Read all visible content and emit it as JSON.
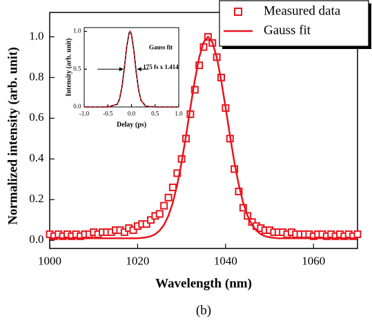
{
  "chart_data": [
    {
      "type": "line",
      "xlabel": "Wavelength (nm)",
      "ylabel": "Normalized intensity (arb. unit)",
      "x": [
        1000,
        1001,
        1002,
        1003,
        1004,
        1005,
        1006,
        1007,
        1008,
        1009,
        1010,
        1011,
        1012,
        1013,
        1014,
        1015,
        1016,
        1017,
        1018,
        1019,
        1020,
        1021,
        1022,
        1023,
        1024,
        1025,
        1026,
        1027,
        1028,
        1029,
        1030,
        1031,
        1032,
        1033,
        1034,
        1035,
        1036,
        1037,
        1038,
        1039,
        1040,
        1041,
        1042,
        1043,
        1044,
        1045,
        1046,
        1047,
        1048,
        1049,
        1050,
        1051,
        1052,
        1053,
        1054,
        1055,
        1056,
        1057,
        1058,
        1059,
        1060,
        1061,
        1062,
        1063,
        1064,
        1065,
        1066,
        1067,
        1068,
        1069,
        1070
      ],
      "series": [
        {
          "name": "Measured data",
          "type": "scatter",
          "color": "#e8141c",
          "values": [
            0.03,
            0.02,
            0.03,
            0.02,
            0.03,
            0.02,
            0.03,
            0.02,
            0.03,
            0.03,
            0.04,
            0.03,
            0.04,
            0.04,
            0.04,
            0.05,
            0.05,
            0.04,
            0.06,
            0.05,
            0.07,
            0.08,
            0.08,
            0.1,
            0.12,
            0.13,
            0.17,
            0.21,
            0.26,
            0.33,
            0.4,
            0.5,
            0.62,
            0.74,
            0.86,
            0.95,
            1.0,
            0.97,
            0.9,
            0.8,
            0.65,
            0.5,
            0.35,
            0.24,
            0.16,
            0.12,
            0.09,
            0.07,
            0.06,
            0.05,
            0.05,
            0.04,
            0.04,
            0.04,
            0.03,
            0.04,
            0.03,
            0.03,
            0.03,
            0.03,
            0.02,
            0.03,
            0.03,
            0.02,
            0.03,
            0.02,
            0.03,
            0.02,
            0.03,
            0.02,
            0.03
          ]
        },
        {
          "name": "Gauss fit",
          "type": "line",
          "color": "#e8141c",
          "values": [
            0.01,
            0.01,
            0.01,
            0.01,
            0.01,
            0.01,
            0.01,
            0.01,
            0.01,
            0.01,
            0.01,
            0.01,
            0.01,
            0.01,
            0.01,
            0.01,
            0.01,
            0.01,
            0.01,
            0.01,
            0.01,
            0.012,
            0.015,
            0.02,
            0.03,
            0.048,
            0.076,
            0.121,
            0.185,
            0.273,
            0.384,
            0.514,
            0.652,
            0.786,
            0.899,
            0.973,
            1.0,
            0.973,
            0.899,
            0.786,
            0.652,
            0.514,
            0.384,
            0.273,
            0.185,
            0.121,
            0.076,
            0.048,
            0.03,
            0.02,
            0.015,
            0.012,
            0.01,
            0.01,
            0.01,
            0.01,
            0.01,
            0.01,
            0.01,
            0.01,
            0.01,
            0.01,
            0.01,
            0.01,
            0.01,
            0.01,
            0.01,
            0.01,
            0.01,
            0.01,
            0.01
          ]
        }
      ],
      "xlim": [
        1000,
        1070
      ],
      "xticks": [
        1000,
        1020,
        1040,
        1060
      ],
      "ylim": [
        -0.04,
        1.12
      ],
      "yticks": [
        {
          "value": 0,
          "label": "0.0"
        },
        0.2,
        0.4,
        0.6,
        0.8,
        {
          "value": 1,
          "label": "1.0"
        }
      ],
      "legend": "top-right"
    },
    {
      "type": "line",
      "xlabel": "Delay (ps)",
      "ylabel": "Intensity (arb. unit)",
      "annotations": [
        "Gauss fit",
        "175 fs x 1.414"
      ],
      "x": [
        -1,
        -0.5,
        -0.3,
        -0.25,
        -0.2,
        -0.15,
        -0.1,
        -0.05,
        -0.03,
        0,
        0.05,
        0.1,
        0.15,
        0.2,
        0.3,
        0.5,
        1
      ],
      "series": [
        {
          "type": "line",
          "color": "#000000",
          "values": [
            0,
            0,
            0.036,
            0.111,
            0.27,
            0.52,
            0.8,
            0.98,
            1.0,
            0.96,
            0.75,
            0.46,
            0.23,
            0.09,
            0.01,
            0,
            0
          ]
        },
        {
          "type": "line",
          "color": "#e8141c",
          "dash": true,
          "values": [
            0,
            0,
            0.036,
            0.111,
            0.27,
            0.52,
            0.8,
            0.98,
            1.0,
            0.96,
            0.75,
            0.46,
            0.23,
            0.09,
            0.01,
            0,
            0
          ]
        }
      ],
      "xlim": [
        -1,
        1
      ],
      "xticks": [
        {
          "value": -1,
          "label": "-1.0"
        },
        -0.5,
        {
          "value": 0,
          "label": "0.0"
        },
        0.5,
        {
          "value": 1,
          "label": "1.0"
        }
      ],
      "ylim": [
        0,
        1.05
      ],
      "yticks": [
        {
          "value": 0,
          "label": "0.0"
        },
        0.5,
        {
          "value": 1,
          "label": "1.0"
        }
      ]
    }
  ],
  "caption": "(b)"
}
